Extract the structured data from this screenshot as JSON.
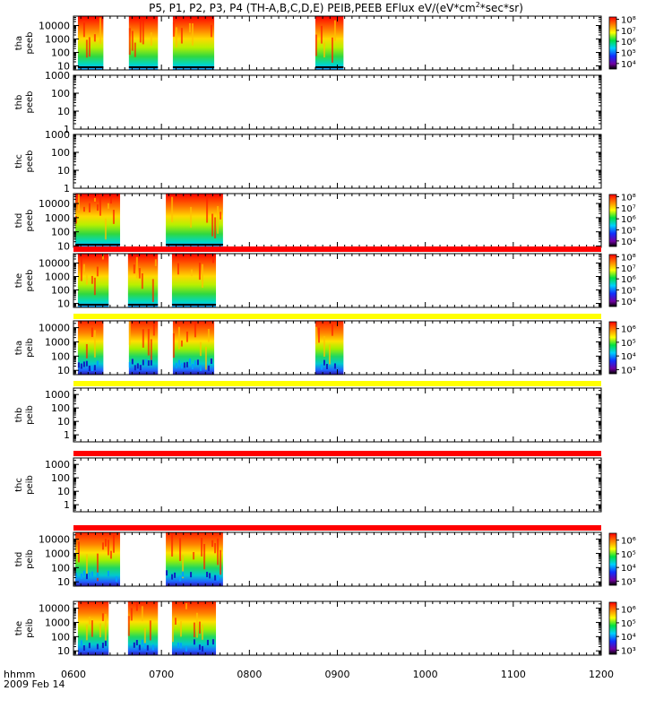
{
  "chart_data": {
    "type": "heatmap",
    "title_parts": [
      "P5, P1, P2, P3, P4 (TH-A,B,C,D,E) PEIB,PEEB EFlux eV/(eV*cm",
      "2",
      "*sec*sr)"
    ],
    "x_axis": {
      "tick_labels": [
        "0600",
        "0700",
        "0800",
        "0900",
        "1000",
        "1100",
        "1200"
      ],
      "tick_hours": [
        6,
        7,
        8,
        9,
        10,
        11,
        12
      ],
      "range_hours": [
        6,
        12
      ],
      "label_line1": "hhmm",
      "label_line2": "2009 Feb 14"
    },
    "y_scale": "log",
    "panels": [
      {
        "probe": "tha",
        "instrument": "peeb",
        "yrange": [
          5,
          50000
        ],
        "yticks": [
          "10",
          "100",
          "1000",
          "10000"
        ],
        "ytick_values": [
          10,
          100,
          1000,
          10000
        ],
        "intervals_hours": [
          [
            6.05,
            6.34
          ],
          [
            6.63,
            6.96
          ],
          [
            7.13,
            7.6
          ],
          [
            8.75,
            9.07
          ]
        ],
        "colorbar": {
          "labels": [
            "10⁸",
            "10⁷",
            "10⁶",
            "10⁵",
            "10⁴"
          ],
          "range_log": [
            3.5,
            8.2
          ]
        },
        "flag_bar_color": "",
        "colormap": "electron",
        "low_line": true
      },
      {
        "probe": "thb",
        "instrument": "peeb",
        "yrange": [
          1,
          1000
        ],
        "yticks": [
          "1",
          "10",
          "100",
          "1000"
        ],
        "ytick_values": [
          1,
          10,
          100,
          1000
        ],
        "intervals_hours": [],
        "colorbar": null,
        "flag_bar_color": "",
        "colormap": "electron",
        "low_line": false
      },
      {
        "probe": "thc",
        "instrument": "peeb",
        "yrange": [
          1,
          1000
        ],
        "yticks": [
          "1",
          "10",
          "100",
          "1000"
        ],
        "ytick_values": [
          1,
          10,
          100,
          1000
        ],
        "intervals_hours": [],
        "colorbar": null,
        "flag_bar_color": "",
        "colormap": "electron",
        "low_line": false
      },
      {
        "probe": "thd",
        "instrument": "peeb",
        "yrange": [
          8,
          50000
        ],
        "yticks": [
          "10",
          "100",
          "1000",
          "10000"
        ],
        "ytick_values": [
          10,
          100,
          1000,
          10000
        ],
        "intervals_hours": [
          [
            6.02,
            6.53
          ],
          [
            7.05,
            7.7
          ]
        ],
        "colorbar": {
          "labels": [
            "10⁸",
            "10⁷",
            "10⁶",
            "10⁵",
            "10⁴"
          ],
          "range_log": [
            3.5,
            8.2
          ]
        },
        "flag_bar_color": "",
        "colormap": "electron",
        "low_line": true
      },
      {
        "probe": "the",
        "instrument": "peeb",
        "yrange": [
          5,
          50000
        ],
        "yticks": [
          "10",
          "100",
          "1000",
          "10000"
        ],
        "ytick_values": [
          10,
          100,
          1000,
          10000
        ],
        "intervals_hours": [
          [
            6.05,
            6.4
          ],
          [
            6.62,
            6.96
          ],
          [
            7.12,
            7.62
          ]
        ],
        "colorbar": {
          "labels": [
            "10⁸",
            "10⁷",
            "10⁶",
            "10⁵",
            "10⁴"
          ],
          "range_log": [
            3.5,
            8.2
          ]
        },
        "flag_bar_color": "#ff0000",
        "colormap": "electron",
        "low_line": true
      },
      {
        "probe": "tha",
        "instrument": "peib",
        "yrange": [
          5,
          30000
        ],
        "yticks": [
          "10",
          "100",
          "1000",
          "10000"
        ],
        "ytick_values": [
          10,
          100,
          1000,
          10000
        ],
        "intervals_hours": [
          [
            6.05,
            6.34
          ],
          [
            6.63,
            6.96
          ],
          [
            7.13,
            7.6
          ],
          [
            8.75,
            9.07
          ]
        ],
        "colorbar": {
          "labels": [
            "10⁶",
            "10⁵",
            "10⁴",
            "10³"
          ],
          "range_log": [
            2.7,
            6.5
          ]
        },
        "flag_bar_color": "#ffff00",
        "colormap": "ion",
        "low_line": false
      },
      {
        "probe": "thb",
        "instrument": "peib",
        "yrange": [
          0.3,
          3000
        ],
        "yticks": [
          "1",
          "10",
          "100",
          "1000"
        ],
        "ytick_values": [
          1,
          10,
          100,
          1000
        ],
        "intervals_hours": [],
        "colorbar": null,
        "flag_bar_color": "#ffff00",
        "colormap": "ion",
        "low_line": false
      },
      {
        "probe": "thc",
        "instrument": "peib",
        "yrange": [
          0.3,
          3000
        ],
        "yticks": [
          "1",
          "10",
          "100",
          "1000"
        ],
        "ytick_values": [
          1,
          10,
          100,
          1000
        ],
        "intervals_hours": [],
        "colorbar": null,
        "flag_bar_color": "#ff0000",
        "colormap": "ion",
        "low_line": true
      },
      {
        "probe": "thd",
        "instrument": "peib",
        "yrange": [
          5,
          30000
        ],
        "yticks": [
          "10",
          "100",
          "1000",
          "10000"
        ],
        "ytick_values": [
          10,
          100,
          1000,
          10000
        ],
        "intervals_hours": [
          [
            6.02,
            6.53
          ],
          [
            7.05,
            7.7
          ]
        ],
        "colorbar": {
          "labels": [
            "10⁶",
            "10⁵",
            "10⁴",
            "10³"
          ],
          "range_log": [
            2.7,
            6.5
          ]
        },
        "flag_bar_color": "#ff0000",
        "colormap": "ion",
        "low_line": false
      },
      {
        "probe": "the",
        "instrument": "peib",
        "yrange": [
          5,
          30000
        ],
        "yticks": [
          "10",
          "100",
          "1000",
          "10000"
        ],
        "ytick_values": [
          10,
          100,
          1000,
          10000
        ],
        "intervals_hours": [
          [
            6.05,
            6.4
          ],
          [
            6.62,
            6.96
          ],
          [
            7.12,
            7.62
          ]
        ],
        "colorbar": {
          "labels": [
            "10⁶",
            "10⁵",
            "10⁴",
            "10³"
          ],
          "range_log": [
            2.7,
            6.5
          ]
        },
        "flag_bar_color": "",
        "colormap": "ion",
        "low_line": false
      }
    ]
  }
}
